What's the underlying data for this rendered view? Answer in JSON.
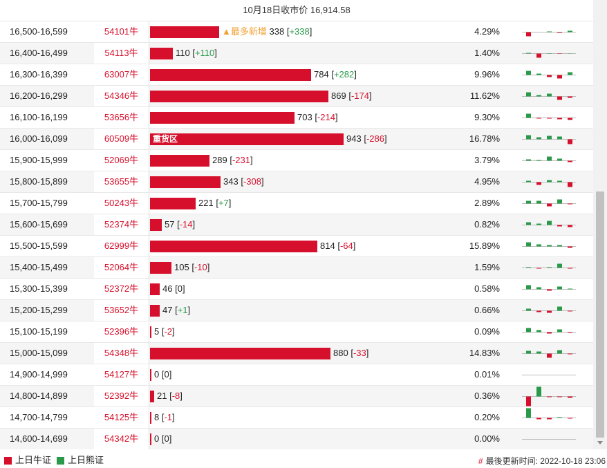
{
  "header": {
    "title": "10月18日收市价 16,914.58"
  },
  "colors": {
    "bull": "#d6102c",
    "bear": "#2a9a4a"
  },
  "rows": [
    {
      "range": "16,500-16,599",
      "code": "54101牛",
      "count": 338,
      "delta": "+338",
      "pct": "4.29%",
      "badge": "▲最多新增",
      "spark": [
        -6,
        0,
        1,
        -1,
        2
      ]
    },
    {
      "range": "16,400-16,499",
      "code": "54113牛",
      "count": 110,
      "delta": "+110",
      "pct": "1.40%",
      "spark": [
        1,
        -6,
        0.5,
        -0.5,
        0.3
      ]
    },
    {
      "range": "16,300-16,399",
      "code": "63007牛",
      "count": 784,
      "delta": "+282",
      "pct": "9.96%",
      "spark": [
        6,
        2,
        -3,
        -5,
        4
      ]
    },
    {
      "range": "16,200-16,299",
      "code": "54346牛",
      "count": 869,
      "delta": "-174",
      "pct": "11.62%",
      "spark": [
        6,
        2,
        4,
        -5,
        -2
      ]
    },
    {
      "range": "16,100-16,199",
      "code": "53656牛",
      "count": 703,
      "delta": "-214",
      "pct": "9.30%",
      "spark": [
        6,
        -1,
        -1,
        -2,
        -3
      ]
    },
    {
      "range": "16,000-16,099",
      "code": "60509牛",
      "count": 943,
      "delta": "-286",
      "pct": "16.78%",
      "label": "重货区",
      "spark": [
        6,
        3,
        5,
        4,
        -7
      ]
    },
    {
      "range": "15,900-15,999",
      "code": "52069牛",
      "count": 289,
      "delta": "-231",
      "pct": "3.79%",
      "spark": [
        2,
        1,
        6,
        3,
        -2
      ]
    },
    {
      "range": "15,800-15,899",
      "code": "53655牛",
      "count": 343,
      "delta": "-308",
      "pct": "4.95%",
      "spark": [
        2,
        -4,
        3,
        2,
        -7
      ]
    },
    {
      "range": "15,700-15,799",
      "code": "50243牛",
      "count": 221,
      "delta": "+7",
      "pct": "2.89%",
      "spark": [
        4,
        4,
        -4,
        6,
        -1
      ]
    },
    {
      "range": "15,600-15,699",
      "code": "52374牛",
      "count": 57,
      "delta": "-14",
      "pct": "0.82%",
      "spark": [
        4,
        2,
        6,
        -2,
        -3
      ]
    },
    {
      "range": "15,500-15,599",
      "code": "62999牛",
      "count": 814,
      "delta": "-64",
      "pct": "15.89%",
      "spark": [
        6,
        3,
        2,
        2,
        -2
      ]
    },
    {
      "range": "15,400-15,499",
      "code": "52064牛",
      "count": 105,
      "delta": "-10",
      "pct": "1.59%",
      "spark": [
        1,
        -1,
        1,
        6,
        -1
      ]
    },
    {
      "range": "15,300-15,399",
      "code": "52372牛",
      "count": 46,
      "delta": "0",
      "pct": "0.58%",
      "spark": [
        6,
        3,
        -2,
        4,
        1
      ]
    },
    {
      "range": "15,200-15,299",
      "code": "53652牛",
      "count": 47,
      "delta": "+1",
      "pct": "0.66%",
      "spark": [
        3,
        -2,
        -3,
        6,
        -1
      ]
    },
    {
      "range": "15,100-15,199",
      "code": "52396牛",
      "count": 5,
      "delta": "-2",
      "pct": "0.09%",
      "spark": [
        6,
        3,
        -2,
        4,
        -1
      ]
    },
    {
      "range": "15,000-15,099",
      "code": "54348牛",
      "count": 880,
      "delta": "-33",
      "pct": "14.83%",
      "spark": [
        4,
        3,
        -6,
        5,
        -1
      ]
    },
    {
      "range": "14,900-14,999",
      "code": "54127牛",
      "count": 0,
      "delta": "0",
      "pct": "0.01%",
      "spark": [
        0,
        0,
        0,
        0,
        0
      ]
    },
    {
      "range": "14,800-14,899",
      "code": "52392牛",
      "count": 21,
      "delta": "-8",
      "pct": "0.36%",
      "spark": [
        -14,
        14,
        -1,
        -1,
        -2
      ]
    },
    {
      "range": "14,700-14,799",
      "code": "54125牛",
      "count": 8,
      "delta": "-1",
      "pct": "0.20%",
      "spark": [
        14,
        -2,
        -2,
        1,
        -1
      ]
    },
    {
      "range": "14,600-14,699",
      "code": "54342牛",
      "count": 0,
      "delta": "0",
      "pct": "0.00%",
      "spark": [
        0,
        0,
        0,
        0,
        0
      ]
    }
  ],
  "footer": {
    "legend_bull": "上日牛证",
    "legend_bear": "上日熊证",
    "updated": "最後更新时间: 2022-10-18 23:06"
  }
}
